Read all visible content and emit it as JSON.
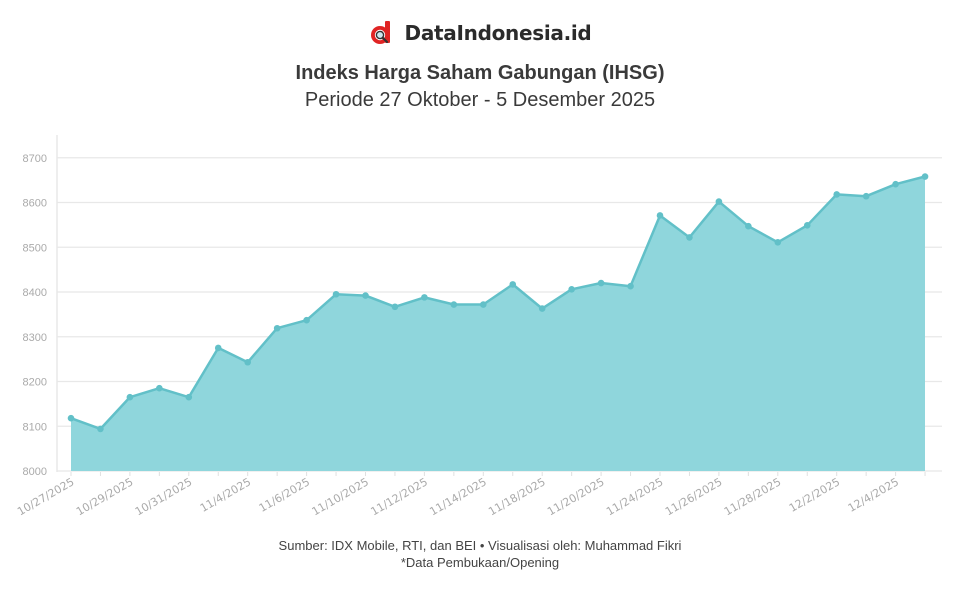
{
  "brand": {
    "name": "DataIndonesia.id",
    "logo_icon": "d-magnifier-logo-icon",
    "logo_color": "#e02424"
  },
  "header": {
    "title": "Indeks Harga Saham Gabungan (IHSG)",
    "subtitle": "Periode 27 Oktober - 5 Desember 2025"
  },
  "footer": {
    "source": "Sumber: IDX Mobile, RTI, dan BEI • Visualisasi oleh: Muhammad Fikri",
    "note": "*Data Pembukaan/Opening"
  },
  "colors": {
    "line": "#62c0c8",
    "fill": "#8fd6dc",
    "grid": "#e8e8e8",
    "tick": "#aaaaaa"
  },
  "chart_data": {
    "type": "area",
    "title": "Indeks Harga Saham Gabungan (IHSG)",
    "subtitle": "Periode 27 Oktober - 5 Desember 2025",
    "xlabel": "",
    "ylabel": "",
    "ylim": [
      8000,
      8750
    ],
    "yticks": [
      8000,
      8100,
      8200,
      8300,
      8400,
      8500,
      8600,
      8700
    ],
    "grid": true,
    "legend": "none",
    "x_tick_labels": [
      "10/27/2025",
      "10/29/2025",
      "10/31/2025",
      "11/4/2025",
      "11/6/2025",
      "11/10/2025",
      "11/12/2025",
      "11/14/2025",
      "11/18/2025",
      "11/20/2025",
      "11/24/2025",
      "11/26/2025",
      "11/28/2025",
      "12/2/2025",
      "12/4/2025"
    ],
    "x": [
      "10/27/2025",
      "10/28/2025",
      "10/29/2025",
      "10/30/2025",
      "10/31/2025",
      "11/3/2025",
      "11/4/2025",
      "11/5/2025",
      "11/6/2025",
      "11/7/2025",
      "11/10/2025",
      "11/11/2025",
      "11/12/2025",
      "11/13/2025",
      "11/14/2025",
      "11/17/2025",
      "11/18/2025",
      "11/19/2025",
      "11/20/2025",
      "11/21/2025",
      "11/24/2025",
      "11/25/2025",
      "11/26/2025",
      "11/27/2025",
      "11/28/2025",
      "12/1/2025",
      "12/2/2025",
      "12/3/2025",
      "12/4/2025",
      "12/5/2025"
    ],
    "series": [
      {
        "name": "IHSG (Opening)",
        "values": [
          8118,
          8094,
          8165,
          8185,
          8165,
          8275,
          8243,
          8319,
          8337,
          8395,
          8392,
          8367,
          8388,
          8372,
          8372,
          8417,
          8363,
          8406,
          8420,
          8413,
          8571,
          8522,
          8602,
          8547,
          8511,
          8549,
          8618,
          8614,
          8641,
          8658
        ]
      }
    ]
  }
}
